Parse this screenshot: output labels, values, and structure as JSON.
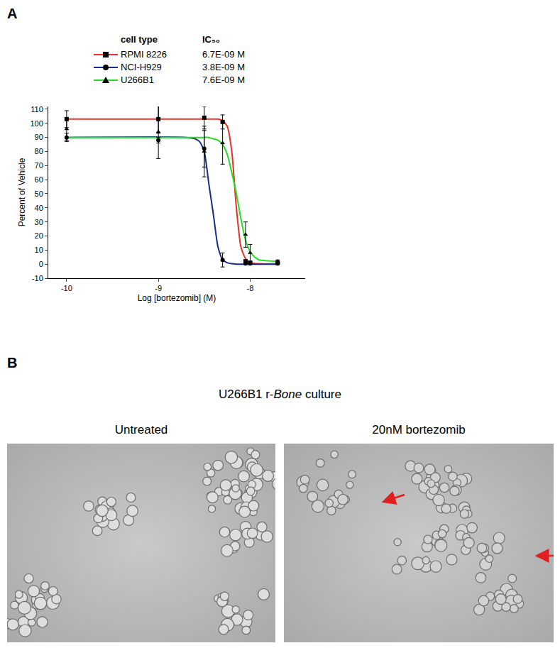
{
  "panel_labels": [
    "A",
    "B"
  ],
  "chart_data": {
    "type": "line",
    "x_label": "Log [bortezomib] (M)",
    "y_label": "Percent of Vehicle",
    "legend_header": [
      "cell type",
      "IC₅₀"
    ],
    "x": [
      -10,
      -9,
      -8.5,
      -8.3,
      -8.05,
      -8,
      -7.7
    ],
    "fit_x": [
      -10,
      -8.7,
      -8.6,
      -8.55,
      -8.5,
      -8.45,
      -8.4,
      -8.35,
      -8.3,
      -8.25,
      -8.2,
      -8.15,
      -8.1,
      -8.05,
      -8.0,
      -7.95,
      -7.9,
      -7.7
    ],
    "xlim": [
      -10.2,
      -7.4
    ],
    "xticks": [
      -10,
      -9,
      -8
    ],
    "ylim": [
      -10,
      112
    ],
    "yticks": [
      -10,
      0,
      10,
      20,
      30,
      40,
      50,
      60,
      70,
      80,
      90,
      100,
      110
    ],
    "grid": false,
    "series": [
      {
        "name": "RPMI 8226",
        "ic50": "6.7E-09 M",
        "color": "#e8302a",
        "marker": "square",
        "values": [
          103,
          103,
          104,
          101,
          2,
          1,
          1
        ],
        "errors": [
          6,
          10,
          8,
          5,
          1,
          1,
          0.5
        ],
        "fit_values": [
          103,
          103,
          103,
          103,
          103,
          103,
          103,
          103,
          102,
          98,
          80,
          40,
          12,
          4,
          1,
          0.5,
          0.3,
          0
        ]
      },
      {
        "name": "NCI-H929",
        "ic50": "3.8E-09 M",
        "color": "#1a2a8a",
        "marker": "circle",
        "values": [
          90,
          88,
          82,
          3,
          0.5,
          0.5,
          0.5
        ],
        "errors": [
          3,
          2,
          13,
          5,
          0.5,
          0.5,
          0.5
        ],
        "fit_values": [
          90,
          90,
          89,
          87,
          80,
          57,
          35,
          12,
          3,
          1,
          0.3,
          0,
          0,
          0,
          0,
          0,
          0,
          0
        ]
      },
      {
        "name": "U266B1",
        "ic50": "7.6E-09 M",
        "color": "#22dd22",
        "marker": "triangle-up",
        "values": [
          96,
          94,
          80,
          86,
          21,
          8,
          2
        ],
        "errors": [
          8,
          19,
          18,
          15,
          9,
          6,
          1
        ],
        "fit_values": [
          90,
          90,
          90,
          90,
          90,
          90,
          89,
          88,
          85,
          78,
          65,
          50,
          32,
          17,
          9,
          5,
          3,
          2
        ]
      }
    ]
  },
  "micrographs": {
    "title_parts": [
      {
        "text": "U266B1 r-"
      },
      {
        "text": "Bone",
        "italic": true
      },
      {
        "text": " culture"
      }
    ],
    "images": [
      {
        "label": "Untreated"
      },
      {
        "label": "20nM bortezomib"
      }
    ]
  }
}
